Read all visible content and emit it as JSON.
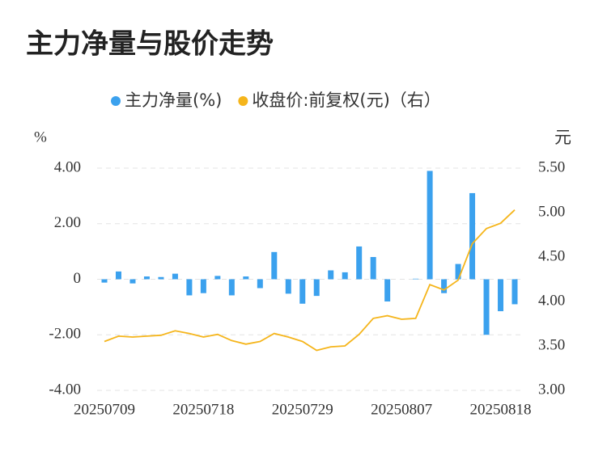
{
  "chart_data": {
    "type": "bar_line",
    "title": "主力净量与股价走势",
    "y_unit": "%",
    "y2_unit": "元",
    "categories": [
      "20250709",
      null,
      null,
      null,
      null,
      null,
      null,
      "20250718",
      null,
      null,
      null,
      null,
      null,
      null,
      "20250729",
      null,
      null,
      null,
      null,
      null,
      null,
      "20250807",
      null,
      null,
      null,
      null,
      null,
      null,
      "20250818",
      null
    ],
    "series": [
      {
        "name": "主力净量(%)",
        "type": "bar",
        "color": "#3ba1ee",
        "axis": "y",
        "values": [
          -0.12,
          0.28,
          -0.15,
          0.1,
          0.08,
          0.2,
          -0.58,
          -0.5,
          0.12,
          -0.58,
          0.1,
          -0.32,
          0.98,
          -0.52,
          -0.88,
          -0.6,
          0.32,
          0.25,
          1.18,
          0.8,
          -0.8,
          0,
          0.02,
          3.9,
          -0.5,
          0.55,
          3.1,
          -2.0,
          -1.15,
          -0.9
        ]
      },
      {
        "name": "收盘价:前复权(元)（右）",
        "type": "line",
        "color": "#f5b51b",
        "axis": "y2",
        "values": [
          3.55,
          3.61,
          3.6,
          3.61,
          3.62,
          3.67,
          3.64,
          3.6,
          3.63,
          3.56,
          3.52,
          3.55,
          3.64,
          3.6,
          3.55,
          3.45,
          3.49,
          3.5,
          3.63,
          3.81,
          3.84,
          3.8,
          3.81,
          4.19,
          4.13,
          4.24,
          4.65,
          4.82,
          4.88,
          5.03
        ]
      }
    ],
    "ylim": [
      -4,
      4
    ],
    "yticks": [
      {
        "value": 4,
        "label": "4.00"
      },
      {
        "value": 2,
        "label": "2.00"
      },
      0,
      {
        "value": -2,
        "label": "-2.00"
      },
      {
        "value": -4,
        "label": "-4.00"
      }
    ],
    "y2lim": [
      3,
      5.5
    ],
    "y2ticks": [
      {
        "value": 5.5,
        "label": "5.50"
      },
      {
        "value": 5,
        "label": "5.00"
      },
      {
        "value": 4.5,
        "label": "4.50"
      },
      {
        "value": 4,
        "label": "4.00"
      },
      {
        "value": 3.5,
        "label": "3.50"
      },
      {
        "value": 3,
        "label": "3.00"
      }
    ],
    "grid": true
  }
}
